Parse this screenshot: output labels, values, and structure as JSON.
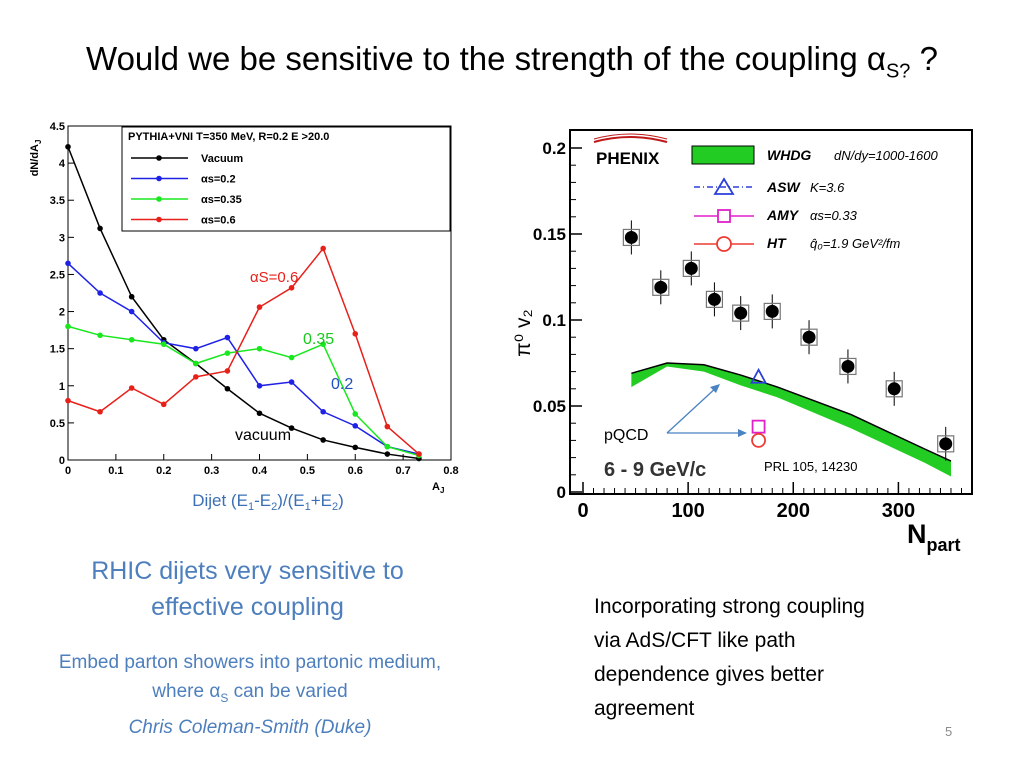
{
  "title": {
    "main": "Would we be sensitive to the strength of the coupling α",
    "sub": "S?",
    "tail": " ?"
  },
  "left_caption": {
    "line1": "RHIC dijets very sensitive to",
    "line2": "effective coupling"
  },
  "left_note": {
    "line1": "Embed parton showers into partonic medium,",
    "line2_a": "where α",
    "line2_sub": "S",
    "line2_b": " can be varied",
    "line3": "Chris Coleman-Smith (Duke)"
  },
  "right_text": {
    "line1": "Incorporating strong coupling",
    "line2": "via  AdS/CFT like path",
    "line3": "dependence  gives better",
    "line4": "agreement"
  },
  "page_number": "5",
  "chart_data": [
    {
      "type": "line",
      "ylabel": "dN/dA",
      "ylabel_sub": "J",
      "xlabel": "A",
      "xlabel_sub": "J",
      "xlabel_below": "Dijet (E1-E2)/(E1+E2)",
      "xlim": [
        0,
        0.8
      ],
      "ylim": [
        0,
        4.5
      ],
      "xticks": [
        "0",
        "0.1",
        "0.2",
        "0.3",
        "0.4",
        "0.5",
        "0.6",
        "0.7",
        "0.8"
      ],
      "yticks": [
        "0",
        "0.5",
        "1",
        "1.5",
        "2",
        "2.5",
        "3",
        "3.5",
        "4",
        "4.5"
      ],
      "legend_header": "PYTHIA+VNI T=350 MeV, R=0.2 E  >20.0",
      "legend_position": "top-right",
      "colors": {
        "Vacuum": "#000000",
        "as02": "#1f22e6",
        "as035": "#18e81d",
        "as06": "#e8201a"
      },
      "x": [
        0.0,
        0.067,
        0.133,
        0.2,
        0.267,
        0.333,
        0.4,
        0.467,
        0.533,
        0.6,
        0.667,
        0.733
      ],
      "series": [
        {
          "name": "Vacuum",
          "key": "Vacuum",
          "values": [
            4.22,
            3.12,
            2.2,
            1.62,
            1.3,
            0.96,
            0.63,
            0.43,
            0.27,
            0.17,
            0.08,
            0.02
          ]
        },
        {
          "name": "αs=0.2",
          "key": "as02",
          "values": [
            2.65,
            2.25,
            2.0,
            1.58,
            1.5,
            1.65,
            1.0,
            1.05,
            0.65,
            0.46,
            0.18,
            0.08
          ]
        },
        {
          "name": "αs=0.35",
          "key": "as035",
          "values": [
            1.8,
            1.68,
            1.62,
            1.56,
            1.3,
            1.44,
            1.5,
            1.38,
            1.56,
            0.62,
            0.18,
            0.06
          ]
        },
        {
          "name": "αs=0.6",
          "key": "as06",
          "values": [
            0.8,
            0.65,
            0.97,
            0.75,
            1.12,
            1.2,
            2.06,
            2.32,
            2.85,
            1.7,
            0.45,
            0.08
          ]
        }
      ],
      "annotations": {
        "as06": "αS=0.6",
        "as035": "0.35",
        "as02": "0.2",
        "vacuum": "vacuum"
      }
    },
    {
      "type": "scatter",
      "ylabel": "π⁰ v₂",
      "xlabel": "N",
      "xlabel_sub": "part",
      "xlim": [
        0,
        370
      ],
      "ylim": [
        0,
        0.2
      ],
      "xticks": [
        "0",
        "100",
        "200",
        "300"
      ],
      "yticks": [
        "0",
        "0.05",
        "0.1",
        "0.15",
        "0.2"
      ],
      "logo": "PHENIX",
      "legend_position": "top-right",
      "legend": [
        {
          "name": "WHDG",
          "label": "dN/dy=1000-1600"
        },
        {
          "name": "ASW",
          "label": "K=3.6"
        },
        {
          "name": "AMY",
          "label": "αs=0.33"
        },
        {
          "name": "HT",
          "label": "q̂₀=1.9 GeV²/fm"
        }
      ],
      "colors": {
        "data": "#000000",
        "band": "#22cc22",
        "asw": "#2b3fd9",
        "amy": "#e020c8",
        "ht": "#ee3b34",
        "arrow": "#4a82c2"
      },
      "points": {
        "x": [
          46,
          74,
          103,
          125,
          150,
          180,
          215,
          252,
          296,
          345
        ],
        "y": [
          0.148,
          0.119,
          0.13,
          0.112,
          0.104,
          0.105,
          0.09,
          0.073,
          0.06,
          0.028
        ]
      },
      "band": {
        "x": [
          46,
          80,
          115,
          150,
          185,
          220,
          255,
          290,
          325,
          350
        ],
        "upper": [
          0.069,
          0.075,
          0.074,
          0.068,
          0.061,
          0.053,
          0.045,
          0.035,
          0.025,
          0.018
        ],
        "lower": [
          0.061,
          0.073,
          0.07,
          0.062,
          0.055,
          0.046,
          0.037,
          0.027,
          0.017,
          0.009
        ]
      },
      "model_points": {
        "ASW": [
          167,
          0.067
        ],
        "AMY": [
          167,
          0.038
        ],
        "HT": [
          167,
          0.03
        ]
      },
      "annotations": {
        "pqcd": "pQCD",
        "energy": "6 - 9 GeV/c",
        "ref": "PRL 105, 14230"
      }
    }
  ]
}
